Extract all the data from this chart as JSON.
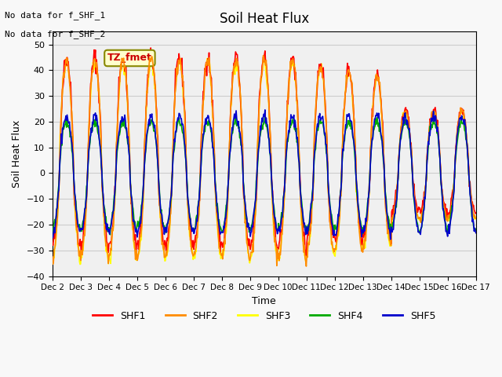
{
  "title": "Soil Heat Flux",
  "ylabel": "Soil Heat Flux",
  "xlabel": "Time",
  "ylim": [
    -40,
    55
  ],
  "yticks": [
    -40,
    -30,
    -20,
    -10,
    0,
    10,
    20,
    30,
    40,
    50
  ],
  "series_colors": {
    "SHF1": "#ff0000",
    "SHF2": "#ff8c00",
    "SHF3": "#ffff00",
    "SHF4": "#00aa00",
    "SHF5": "#0000cc"
  },
  "series_names": [
    "SHF1",
    "SHF2",
    "SHF3",
    "SHF4",
    "SHF5"
  ],
  "xticklabels": [
    "Dec 2",
    "Dec 3",
    "Dec 4",
    "Dec 5",
    "Dec 6",
    "Dec 7",
    "Dec 8",
    "Dec 9",
    "Dec 10",
    "Dec 11",
    "Dec 12",
    "Dec 13",
    "Dec 14",
    "Dec 15",
    "Dec 16",
    "Dec 17"
  ],
  "xtick_positions": [
    0,
    1,
    2,
    3,
    4,
    5,
    6,
    7,
    8,
    9,
    10,
    11,
    12,
    13,
    14,
    15
  ],
  "text_no_data": [
    "No data for f_SHF_1",
    "No data for f_SHF_2"
  ],
  "annotation_label": "TZ_fmet",
  "annotation_color": "#cc0000",
  "annotation_bg": "#ffffcc",
  "grid_color": "#cccccc",
  "plot_bg": "#f0f0f0",
  "linewidth": 1.2
}
